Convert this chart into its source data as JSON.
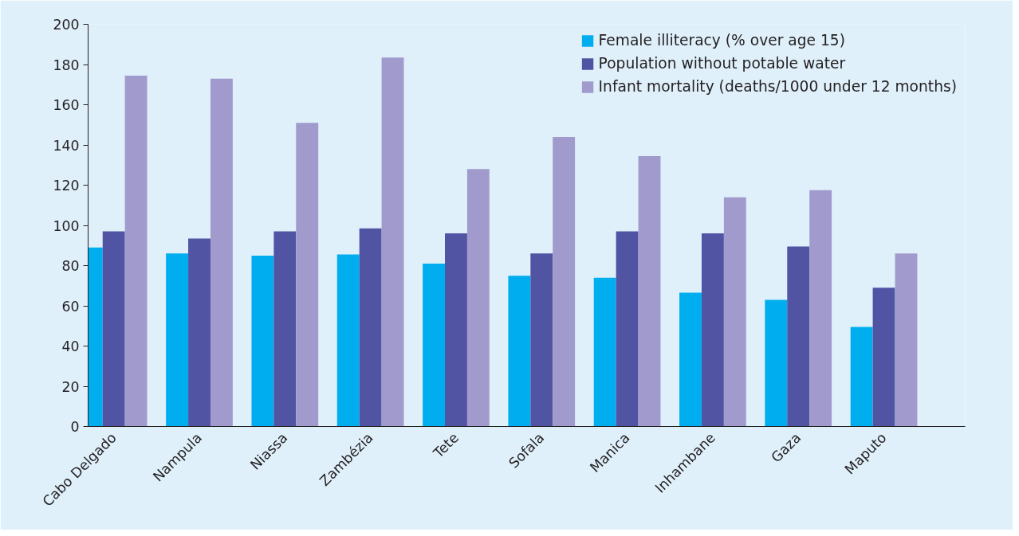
{
  "chart_data": {
    "type": "bar",
    "categories": [
      "Cabo Delgado",
      "Nampula",
      "Niassa",
      "Zambézia",
      "Tete",
      "Sofala",
      "Manica",
      "Inhambane",
      "Gaza",
      "Maputo"
    ],
    "series": [
      {
        "name": "Female illiteracy (% over age 15)",
        "color": "#00aeef",
        "values": [
          89,
          86,
          85,
          85.5,
          81,
          75,
          74,
          66.5,
          63,
          49.5
        ]
      },
      {
        "name": "Population without potable water",
        "color": "#5153a3",
        "values": [
          97,
          93.5,
          97,
          98.5,
          96,
          86,
          97,
          96,
          89.5,
          69
        ]
      },
      {
        "name": "Infant mortality (deaths/1000 under 12 months)",
        "color": "#a09bcc",
        "values": [
          174.5,
          173,
          151,
          183.5,
          128,
          144,
          134.5,
          114,
          117.5,
          86
        ]
      }
    ],
    "ylim": [
      0,
      200
    ],
    "yticks": [
      0,
      20,
      40,
      60,
      80,
      100,
      120,
      140,
      160,
      180,
      200
    ],
    "grid": false,
    "legend": "top right"
  }
}
